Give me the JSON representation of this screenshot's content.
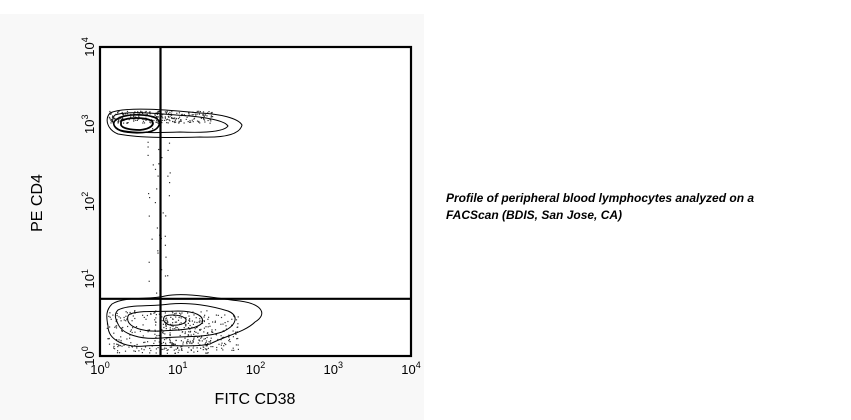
{
  "caption": {
    "lines": [
      "Profile of peripheral blood lymphocytes analyzed on a",
      "FACScan (BDIS, San Jose, CA)"
    ]
  },
  "chart_data": {
    "type": "scatter",
    "subtype": "flow-cytometry contour plot with quadrant gates",
    "xlabel": "FITC CD38",
    "ylabel": "PE CD4",
    "x_scale": "log",
    "y_scale": "log",
    "xlim": [
      1,
      10000
    ],
    "ylim": [
      1,
      10000
    ],
    "x_ticks": [
      {
        "base": "10",
        "exp": "0",
        "value": 1
      },
      {
        "base": "10",
        "exp": "1",
        "value": 10
      },
      {
        "base": "10",
        "exp": "2",
        "value": 100
      },
      {
        "base": "10",
        "exp": "3",
        "value": 1000
      },
      {
        "base": "10",
        "exp": "4",
        "value": 10000
      }
    ],
    "y_ticks": [
      {
        "base": "10",
        "exp": "0",
        "value": 1
      },
      {
        "base": "10",
        "exp": "1",
        "value": 10
      },
      {
        "base": "10",
        "exp": "2",
        "value": 100
      },
      {
        "base": "10",
        "exp": "3",
        "value": 1000
      },
      {
        "base": "10",
        "exp": "4",
        "value": 10000
      }
    ],
    "gates": {
      "x": 6,
      "y": 5.5
    },
    "populations": [
      {
        "center": [
          3.3,
          1300
        ],
        "spread": [
          [
            1.3,
            30
          ],
          [
            1050,
            1500
          ]
        ],
        "density": "high"
      },
      {
        "center": [
          3.0,
          2.3
        ],
        "spread": [
          [
            1.2,
            25
          ],
          [
            1.1,
            4.0
          ]
        ],
        "density": "high"
      },
      {
        "center": [
          12,
          2.3
        ],
        "spread": [
          [
            6,
            60
          ],
          [
            1.2,
            3.5
          ]
        ],
        "density": "medium"
      }
    ],
    "grid": false
  }
}
